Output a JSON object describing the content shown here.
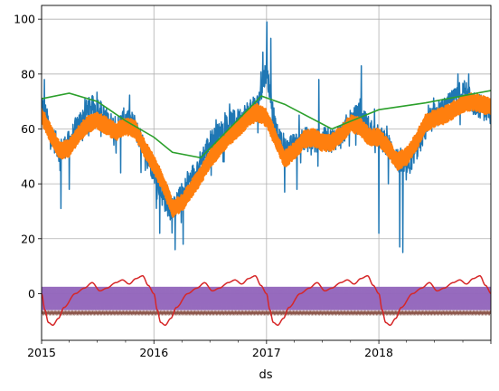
{
  "chart_data": {
    "type": "line",
    "xlabel": "ds",
    "ylabel": "",
    "xlim": [
      "2015-01-01",
      "2018-12-31"
    ],
    "ylim": [
      -17,
      105
    ],
    "grid": true,
    "x_ticks": [
      "2015-01-01",
      "2016-01-01",
      "2017-01-01",
      "2018-01-01",
      "2018-12-31"
    ],
    "x_tick_labels": [
      "2015",
      "2016",
      "2017",
      "2018",
      ""
    ],
    "y_ticks": [
      0,
      20,
      40,
      60,
      80,
      100
    ],
    "y_tick_labels": [
      "0",
      "20",
      "40",
      "60",
      "80",
      "100"
    ],
    "series": [
      {
        "color": "#1f77b4",
        "description_points": [
          [
            "2015-01-01",
            70
          ],
          [
            "2015-02-01",
            58
          ],
          [
            "2015-03-01",
            52
          ],
          [
            "2015-04-01",
            55
          ],
          [
            "2015-05-01",
            62
          ],
          [
            "2015-06-01",
            67
          ],
          [
            "2015-07-01",
            68
          ],
          [
            "2015-08-01",
            63
          ],
          [
            "2015-09-01",
            60
          ],
          [
            "2015-10-01",
            64
          ],
          [
            "2015-11-01",
            61
          ],
          [
            "2015-12-01",
            52
          ],
          [
            "2016-01-01",
            45
          ],
          [
            "2016-02-01",
            35
          ],
          [
            "2016-03-01",
            30
          ],
          [
            "2016-04-01",
            36
          ],
          [
            "2016-05-01",
            42
          ],
          [
            "2016-06-01",
            48
          ],
          [
            "2016-07-01",
            55
          ],
          [
            "2016-08-01",
            58
          ],
          [
            "2016-09-01",
            62
          ],
          [
            "2016-10-01",
            63
          ],
          [
            "2016-11-01",
            66
          ],
          [
            "2016-12-01",
            68
          ],
          [
            "2017-01-01",
            82
          ],
          [
            "2017-02-01",
            58
          ],
          [
            "2017-03-01",
            52
          ],
          [
            "2017-04-01",
            54
          ],
          [
            "2017-05-01",
            57
          ],
          [
            "2017-06-01",
            55
          ],
          [
            "2017-07-01",
            56
          ],
          [
            "2017-08-01",
            56
          ],
          [
            "2017-09-01",
            58
          ],
          [
            "2017-10-01",
            63
          ],
          [
            "2017-11-01",
            65
          ],
          [
            "2017-12-01",
            60
          ],
          [
            "2018-01-01",
            57
          ],
          [
            "2018-02-01",
            54
          ],
          [
            "2018-03-01",
            49
          ],
          [
            "2018-04-01",
            45
          ],
          [
            "2018-05-01",
            52
          ],
          [
            "2018-06-01",
            60
          ],
          [
            "2018-07-01",
            65
          ],
          [
            "2018-08-01",
            67
          ],
          [
            "2018-09-01",
            70
          ],
          [
            "2018-10-01",
            74
          ],
          [
            "2018-11-01",
            70
          ],
          [
            "2018-12-31",
            66
          ]
        ],
        "spikes": [
          [
            "2015-01-10",
            78
          ],
          [
            "2015-03-05",
            31
          ],
          [
            "2015-04-01",
            38
          ],
          [
            "2015-09-15",
            44
          ],
          [
            "2016-01-20",
            22
          ],
          [
            "2016-03-10",
            16
          ],
          [
            "2016-04-05",
            18
          ],
          [
            "2016-12-20",
            88
          ],
          [
            "2017-01-02",
            99
          ],
          [
            "2017-01-15",
            93
          ],
          [
            "2017-03-01",
            37
          ],
          [
            "2017-04-10",
            38
          ],
          [
            "2017-06-20",
            78
          ],
          [
            "2017-11-05",
            83
          ],
          [
            "2018-01-01",
            22
          ],
          [
            "2018-02-01",
            40
          ],
          [
            "2018-03-10",
            17
          ],
          [
            "2018-03-20",
            15
          ],
          [
            "2018-09-15",
            80
          ],
          [
            "2018-10-20",
            80
          ]
        ]
      },
      {
        "color": "#ff7f0e",
        "points": [
          [
            "2015-01-01",
            65
          ],
          [
            "2015-02-01",
            58
          ],
          [
            "2015-03-01",
            52
          ],
          [
            "2015-04-01",
            53
          ],
          [
            "2015-05-01",
            58
          ],
          [
            "2015-06-01",
            62
          ],
          [
            "2015-07-01",
            63
          ],
          [
            "2015-08-01",
            61
          ],
          [
            "2015-09-01",
            59
          ],
          [
            "2015-10-01",
            61
          ],
          [
            "2015-11-01",
            60
          ],
          [
            "2015-12-01",
            53
          ],
          [
            "2016-01-01",
            47
          ],
          [
            "2016-02-01",
            40
          ],
          [
            "2016-03-01",
            31
          ],
          [
            "2016-04-01",
            33
          ],
          [
            "2016-05-01",
            38
          ],
          [
            "2016-06-01",
            43
          ],
          [
            "2016-07-01",
            49
          ],
          [
            "2016-08-01",
            53
          ],
          [
            "2016-09-01",
            57
          ],
          [
            "2016-10-01",
            60
          ],
          [
            "2016-11-01",
            64
          ],
          [
            "2016-12-01",
            66
          ],
          [
            "2017-01-01",
            64
          ],
          [
            "2017-02-01",
            56
          ],
          [
            "2017-03-01",
            49
          ],
          [
            "2017-04-01",
            52
          ],
          [
            "2017-05-01",
            56
          ],
          [
            "2017-06-01",
            57
          ],
          [
            "2017-07-01",
            55
          ],
          [
            "2017-08-01",
            55
          ],
          [
            "2017-09-01",
            58
          ],
          [
            "2017-10-01",
            62
          ],
          [
            "2017-11-01",
            61
          ],
          [
            "2017-12-01",
            57
          ],
          [
            "2018-01-01",
            57
          ],
          [
            "2018-02-01",
            53
          ],
          [
            "2018-03-01",
            48
          ],
          [
            "2018-04-01",
            50
          ],
          [
            "2018-05-01",
            55
          ],
          [
            "2018-06-01",
            62
          ],
          [
            "2018-07-01",
            64
          ],
          [
            "2018-08-01",
            65
          ],
          [
            "2018-09-01",
            67
          ],
          [
            "2018-10-01",
            69
          ],
          [
            "2018-11-01",
            70
          ],
          [
            "2018-12-31",
            68
          ]
        ]
      },
      {
        "color": "#2ca02c",
        "points": [
          [
            "2015-01-01",
            71
          ],
          [
            "2015-04-01",
            73
          ],
          [
            "2015-07-01",
            70
          ],
          [
            "2015-10-01",
            63
          ],
          [
            "2016-01-01",
            57
          ],
          [
            "2016-03-01",
            51.5
          ],
          [
            "2016-06-01",
            49.5
          ],
          [
            "2016-09-01",
            60
          ],
          [
            "2016-12-15",
            72
          ],
          [
            "2017-03-01",
            69
          ],
          [
            "2017-08-01",
            60
          ],
          [
            "2018-01-01",
            67
          ],
          [
            "2018-06-01",
            69.5
          ],
          [
            "2018-12-31",
            74
          ]
        ]
      },
      {
        "color": "#d62728",
        "yearly_profile": [
          [
            0.0,
            0
          ],
          [
            0.03,
            -6
          ],
          [
            0.06,
            -10.5
          ],
          [
            0.1,
            -11.5
          ],
          [
            0.15,
            -9
          ],
          [
            0.2,
            -5
          ],
          [
            0.3,
            0
          ],
          [
            0.38,
            2
          ],
          [
            0.45,
            4
          ],
          [
            0.52,
            1
          ],
          [
            0.58,
            2
          ],
          [
            0.66,
            4
          ],
          [
            0.72,
            5
          ],
          [
            0.78,
            3.5
          ],
          [
            0.84,
            5.5
          ],
          [
            0.9,
            6.5
          ],
          [
            0.95,
            3
          ],
          [
            1.0,
            0
          ]
        ]
      },
      {
        "color": "#8c564b",
        "constant": -7
      },
      {
        "color": "#9467bd",
        "band": [
          -6,
          2.5
        ]
      }
    ]
  }
}
